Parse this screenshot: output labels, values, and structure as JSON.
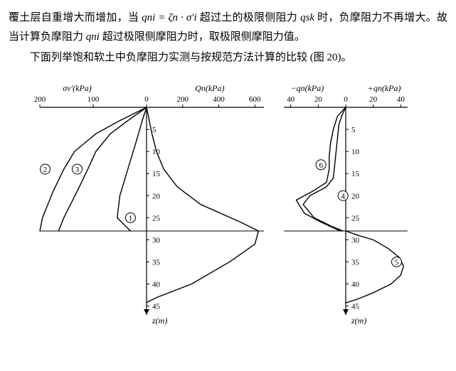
{
  "text": {
    "p1a": "覆土层自重增大而增加，当 ",
    "p1_formula": "qni = ζn · σ′i",
    "p1b": " 超过土的极限侧阻力 ",
    "p1_qsk": "qsk",
    "p1c": " 时，负摩阻力不再增大。故当计算负摩阻力 ",
    "p1_qni2": "qni",
    "p1d": " 超过极限侧摩阻力时，取极限侧摩阻力值。",
    "p2": "下面列举饱和软土中负摩阻力实测与按规范方法计算的比较 (图 20)。"
  },
  "figure": {
    "left": {
      "axis_top_left_label": "σv′(kPa)",
      "axis_top_right_label": "Qn(kPa)",
      "axis_bottom_label": "z(m)",
      "x_left_ticks": [
        "200",
        "100",
        "0"
      ],
      "x_left_values": [
        -200,
        -100,
        0
      ],
      "x_right_ticks": [
        "200",
        "400",
        "600"
      ],
      "x_right_values": [
        200,
        400,
        600
      ],
      "y_ticks": [
        "5",
        "10",
        "15",
        "20",
        "25",
        "30",
        "35",
        "40",
        "45"
      ],
      "y_values": [
        5,
        10,
        15,
        20,
        25,
        30,
        35,
        40,
        45
      ],
      "layer_line_z": 28,
      "curves": {
        "circle1": {
          "label": "1",
          "label_pos_x": -30,
          "label_pos_z": 25,
          "points": [
            [
              0,
              0
            ],
            [
              -8,
              3
            ],
            [
              -20,
              8
            ],
            [
              -35,
              14
            ],
            [
              -50,
              20
            ],
            [
              -55,
              25
            ],
            [
              -30,
              28
            ]
          ]
        },
        "circle2": {
          "label": "2",
          "label_pos_x": -190,
          "label_pos_z": 14,
          "points": [
            [
              0,
              0
            ],
            [
              -50,
              3
            ],
            [
              -95,
              6
            ],
            [
              -135,
              10
            ],
            [
              -155,
              14
            ],
            [
              -175,
              19
            ],
            [
              -195,
              25
            ],
            [
              -200,
              28
            ]
          ]
        },
        "circle3": {
          "label": "3",
          "label_pos_x": -130,
          "label_pos_z": 14,
          "points": [
            [
              0,
              0
            ],
            [
              -35,
              3
            ],
            [
              -68,
              6
            ],
            [
              -95,
              10
            ],
            [
              -110,
              14
            ],
            [
              -130,
              19
            ],
            [
              -155,
              25
            ],
            [
              -165,
              28
            ]
          ]
        },
        "qn": {
          "points": [
            [
              0,
              0
            ],
            [
              15,
              3
            ],
            [
              30,
              6
            ],
            [
              55,
              10
            ],
            [
              95,
              14
            ],
            [
              170,
              18
            ],
            [
              300,
              22
            ],
            [
              520,
              26
            ],
            [
              620,
              28
            ],
            [
              600,
              31
            ],
            [
              460,
              35
            ],
            [
              250,
              40
            ],
            [
              60,
              43
            ],
            [
              0,
              44.2
            ]
          ]
        }
      }
    },
    "right": {
      "axis_top_left_label": "−qn(kPa)",
      "axis_top_right_label": "+qn(kPa)",
      "axis_bottom_label": "z(m)",
      "x_left_ticks": [
        "40",
        "20",
        "0"
      ],
      "x_left_values": [
        -40,
        -20,
        0
      ],
      "x_right_ticks": [
        "20",
        "40"
      ],
      "x_right_values": [
        20,
        40
      ],
      "y_ticks": [
        "5",
        "10",
        "15",
        "20",
        "25",
        "30",
        "35",
        "40",
        "45"
      ],
      "y_values": [
        5,
        10,
        15,
        20,
        25,
        30,
        35,
        40,
        45
      ],
      "layer_line_z": 28,
      "curves": {
        "circle4": {
          "label": "4",
          "label_pos_x": -2,
          "label_pos_z": 20,
          "points": [
            [
              0,
              0
            ],
            [
              -6,
              2
            ],
            [
              -9,
              5
            ],
            [
              -11,
              8
            ],
            [
              -12,
              11
            ],
            [
              -12,
              14
            ],
            [
              -14,
              17
            ],
            [
              -24,
              19
            ],
            [
              -36,
              21
            ],
            [
              -30,
              24
            ],
            [
              -18,
              26
            ],
            [
              -4,
              28
            ]
          ]
        },
        "circle5": {
          "label": "5",
          "label_pos_x": 37,
          "label_pos_z": 35,
          "points": [
            [
              0,
              28
            ],
            [
              9,
              29
            ],
            [
              20,
              30
            ],
            [
              31,
              32
            ],
            [
              39,
              34
            ],
            [
              42,
              36
            ],
            [
              40,
              38
            ],
            [
              33,
              40
            ],
            [
              20,
              42
            ],
            [
              8,
              43.5
            ],
            [
              0,
              44.3
            ]
          ]
        },
        "circle6": {
          "label": "6",
          "label_pos_x": -18,
          "label_pos_z": 13,
          "points": [
            [
              0,
              0
            ],
            [
              -3,
              2
            ],
            [
              -5,
              4
            ],
            [
              -6,
              7
            ],
            [
              -7,
              10
            ],
            [
              -8,
              13
            ],
            [
              -9,
              16
            ],
            [
              -14,
              18
            ],
            [
              -26,
              20
            ],
            [
              -31,
              22
            ],
            [
              -23,
              25
            ],
            [
              -10,
              27
            ],
            [
              -2,
              28
            ]
          ]
        }
      }
    },
    "style": {
      "axis_color": "#000000",
      "tick_length": 4,
      "line_width": 1.4,
      "font_size_axis": 12,
      "font_size_tick": 11,
      "font_size_circle": 11,
      "circle_radius": 7,
      "background": "#ffffff"
    }
  }
}
